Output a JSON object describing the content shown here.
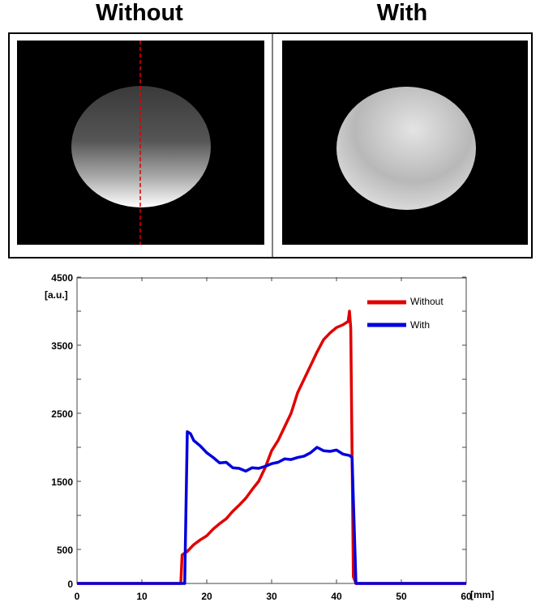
{
  "panels": {
    "left_title": "Without",
    "right_title": "With",
    "profile_line_color": "#e00000"
  },
  "chart_data": {
    "type": "line",
    "title": "",
    "xlabel": "[mm]",
    "ylabel": "[a.u.]",
    "xlim": [
      0,
      60
    ],
    "ylim": [
      0,
      4500
    ],
    "xticks": [
      0,
      10,
      20,
      30,
      40,
      50,
      60
    ],
    "yticks": [
      0,
      500,
      1500,
      2500,
      3500,
      4500
    ],
    "grid": false,
    "legend_position": "top-right",
    "series": [
      {
        "name": "Without",
        "color": "#e00000",
        "x": [
          0,
          16,
          16.2,
          17,
          18,
          19,
          20,
          21,
          22,
          23,
          24,
          25,
          26,
          27,
          28,
          29,
          30,
          31,
          32,
          33,
          34,
          35,
          36,
          37,
          38,
          39,
          40,
          41,
          41.8,
          42,
          42.2,
          42.6,
          43,
          60
        ],
        "y": [
          0,
          0,
          420,
          470,
          570,
          640,
          700,
          800,
          880,
          950,
          1060,
          1150,
          1250,
          1380,
          1500,
          1700,
          1950,
          2100,
          2300,
          2500,
          2800,
          3000,
          3200,
          3400,
          3580,
          3680,
          3760,
          3800,
          3850,
          4000,
          3750,
          100,
          0,
          0
        ]
      },
      {
        "name": "With",
        "color": "#0000dd",
        "x": [
          0,
          16.6,
          17,
          17.5,
          18,
          19,
          20,
          21,
          22,
          23,
          24,
          25,
          26,
          27,
          28,
          29,
          30,
          31,
          32,
          33,
          34,
          35,
          36,
          37,
          38,
          39,
          40,
          41,
          42,
          42.4,
          43,
          60
        ],
        "y": [
          0,
          0,
          2230,
          2200,
          2100,
          2020,
          1920,
          1850,
          1770,
          1780,
          1700,
          1690,
          1650,
          1700,
          1690,
          1720,
          1760,
          1780,
          1830,
          1820,
          1850,
          1870,
          1920,
          2000,
          1950,
          1940,
          1960,
          1900,
          1880,
          1850,
          0,
          0
        ]
      }
    ]
  }
}
